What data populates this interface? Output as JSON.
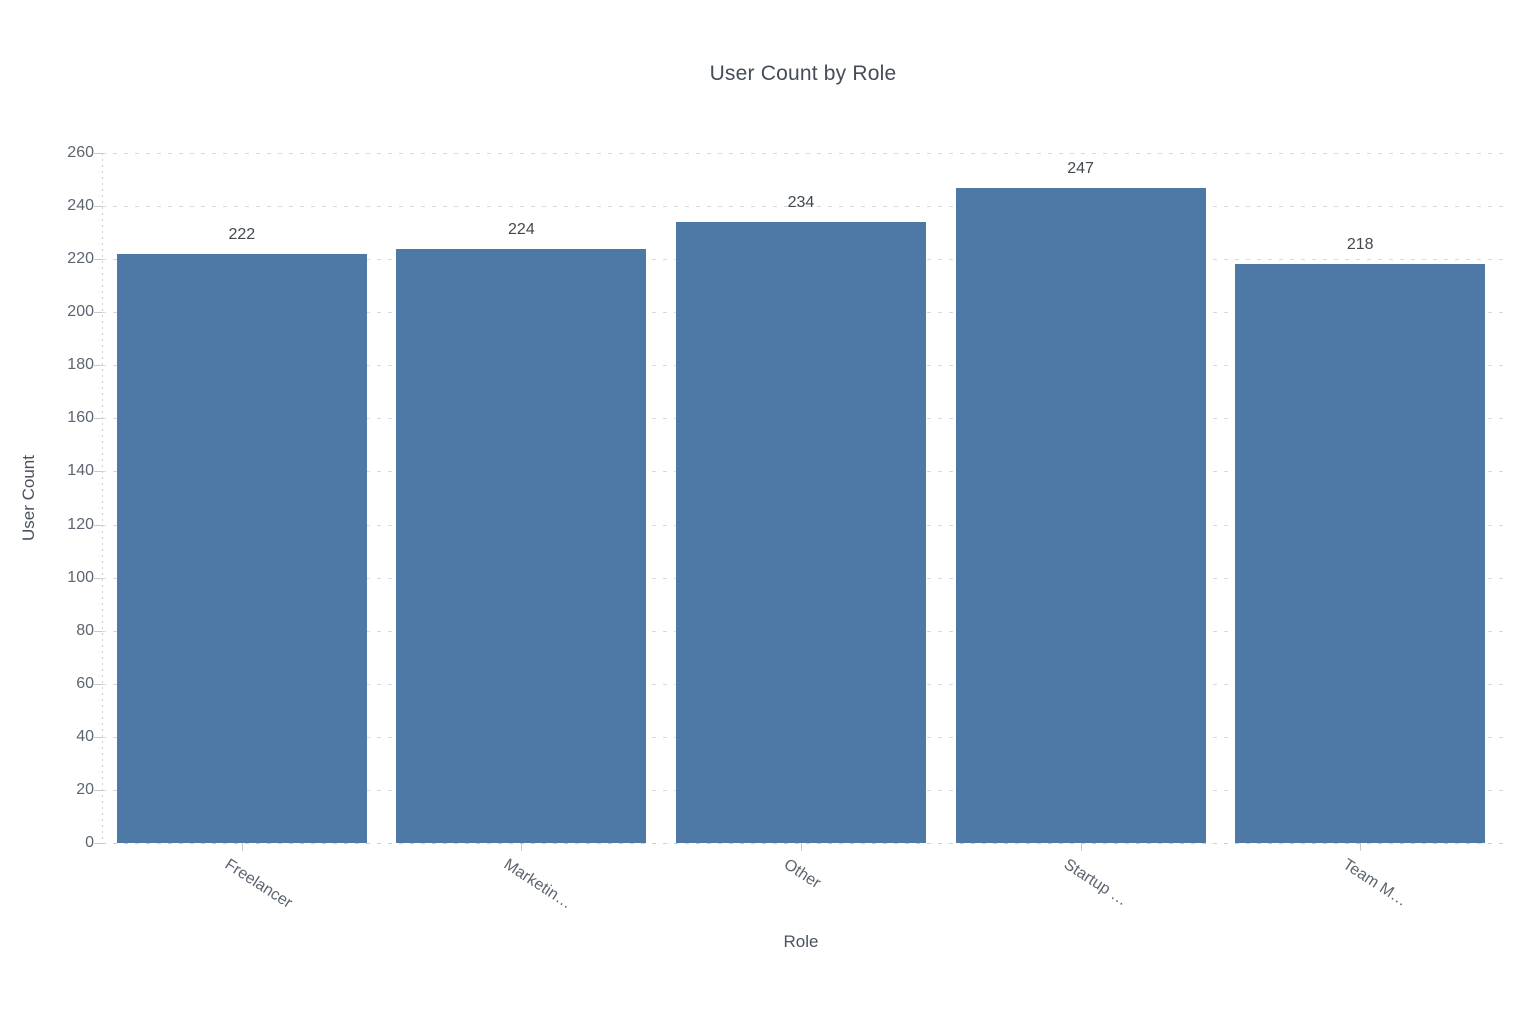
{
  "chart_data": {
    "type": "bar",
    "title": "User Count by Role",
    "xlabel": "Role",
    "ylabel": "User Count",
    "categories": [
      "Freelancer",
      "Marketin…",
      "Other",
      "Startup …",
      "Team M…"
    ],
    "values": [
      222,
      224,
      234,
      247,
      218
    ],
    "ylim": [
      0,
      260
    ],
    "ytick_step": 20,
    "grid": "horizontal-dashed",
    "legend_position": "none",
    "bar_color": "#4e79a7",
    "value_label_color": "#43484e",
    "title_color": "#444d59",
    "tick_label_color": "#5b6470",
    "axis_color": "#c6cad0",
    "grid_color": "#d7dadf",
    "background_color": "#ffffff"
  }
}
